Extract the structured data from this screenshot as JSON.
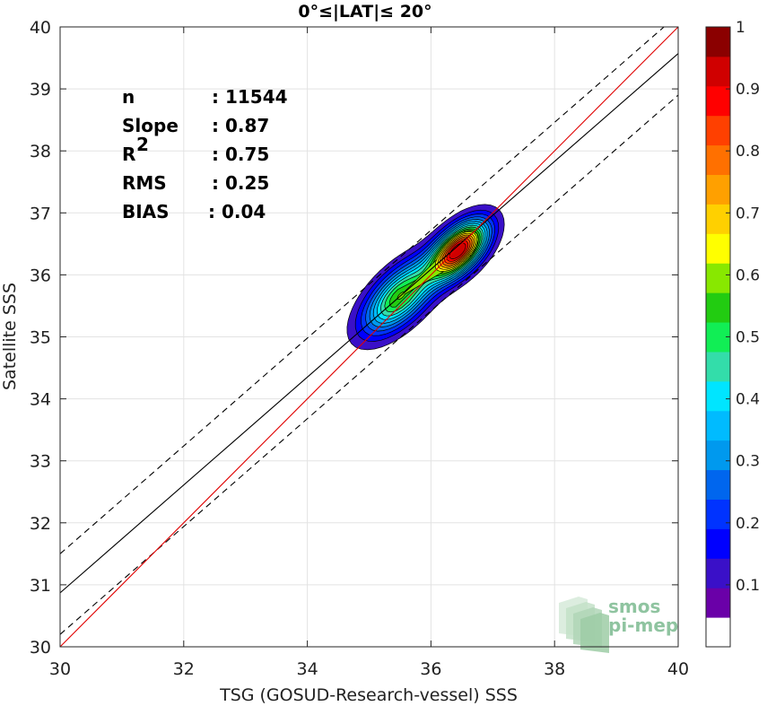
{
  "chart_data": {
    "type": "contour",
    "title": "0°≤|LAT|≤ 20°",
    "xlabel": "TSG (GOSUD-Research-vessel) SSS",
    "ylabel": "Satellite SSS",
    "xlim": [
      30,
      40
    ],
    "ylim": [
      30,
      40
    ],
    "xticks": [
      "30",
      "32",
      "34",
      "36",
      "38",
      "40"
    ],
    "yticks": [
      "30",
      "31",
      "32",
      "33",
      "34",
      "35",
      "36",
      "37",
      "38",
      "39",
      "40"
    ],
    "grid": true,
    "stats": [
      {
        "label": "n",
        "value": ": 11544"
      },
      {
        "label": "Slope",
        "value": ": 0.87"
      },
      {
        "label": "R",
        "sup": "2",
        "value": ": 0.75"
      },
      {
        "label": "RMS",
        "value": ": 0.25"
      },
      {
        "label": "BIAS",
        "value": ": 0.04"
      }
    ],
    "lines": {
      "identity": {
        "color": "#e00000",
        "x": [
          30,
          40
        ],
        "y": [
          30,
          40
        ]
      },
      "regression": {
        "color": "#000000",
        "slope": 0.87,
        "intercept": 4.77
      },
      "upper_bound": {
        "color": "#000000",
        "dash": true,
        "slope": 0.87,
        "intercept": 5.4
      },
      "lower_bound": {
        "color": "#000000",
        "dash": true,
        "slope": 0.87,
        "intercept": 4.1
      }
    },
    "density_peaks": [
      {
        "x": 36.45,
        "y": 36.4,
        "max": 0.95
      },
      {
        "x": 35.5,
        "y": 35.65,
        "max": 0.55
      }
    ],
    "colorbar": {
      "range": [
        0,
        1
      ],
      "ticks": [
        "0.1",
        "0.2",
        "0.3",
        "0.4",
        "0.5",
        "0.6",
        "0.7",
        "0.8",
        "0.9",
        "1"
      ],
      "colors": [
        "#ffffff",
        "#6a00a8",
        "#3a10c8",
        "#0000ff",
        "#0033ff",
        "#0066ee",
        "#0099ee",
        "#00bbff",
        "#00e5ff",
        "#33ddaa",
        "#11ee55",
        "#22cc11",
        "#88e800",
        "#ffff00",
        "#ffd000",
        "#ffa000",
        "#ff7000",
        "#ff4000",
        "#ff0000",
        "#d00000",
        "#8b0000"
      ]
    },
    "watermark": {
      "line1": "smos",
      "line2": "pi-mep"
    }
  }
}
